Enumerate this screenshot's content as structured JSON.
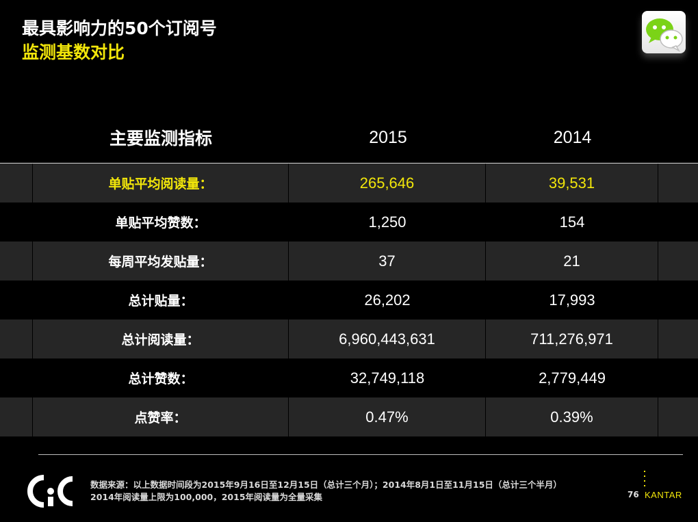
{
  "title": {
    "line1": "最具影响力的50个订阅号",
    "line2": "监测基数对比"
  },
  "logo_icon": "wechat-icon",
  "table": {
    "headers": [
      "主要监测指标",
      "2015",
      "2014"
    ],
    "rows": [
      {
        "label": "单贴平均阅读量：",
        "v2015": "265,646",
        "v2014": "39,531",
        "highlight": true
      },
      {
        "label": "单贴平均赞数：",
        "v2015": "1,250",
        "v2014": "154"
      },
      {
        "label": "每周平均发贴量：",
        "v2015": "37",
        "v2014": "21"
      },
      {
        "label": "总计贴量：",
        "v2015": "26,202",
        "v2014": "17,993"
      },
      {
        "label": "总计阅读量：",
        "v2015": "6,960,443,631",
        "v2014": "711,276,971"
      },
      {
        "label": "总计赞数：",
        "v2015": "32,749,118",
        "v2014": "2,779,449"
      },
      {
        "label": "点赞率：",
        "v2015": "0.47%",
        "v2014": "0.39%"
      }
    ]
  },
  "footer": {
    "cic_logo": "CIC",
    "note_line1": "数据来源：以上数据时间段为2015年9月16日至12月15日（总计三个月）；2014年8月1日至11月15日（总计三个半月）",
    "note_line2": "2014年阅读量上限为100,000，2015年阅读量为全量采集",
    "page_number": "76",
    "brand": "KANTAR"
  },
  "colors": {
    "accent": "#f2e60a",
    "background": "#000000",
    "row_alt": "#262626"
  }
}
